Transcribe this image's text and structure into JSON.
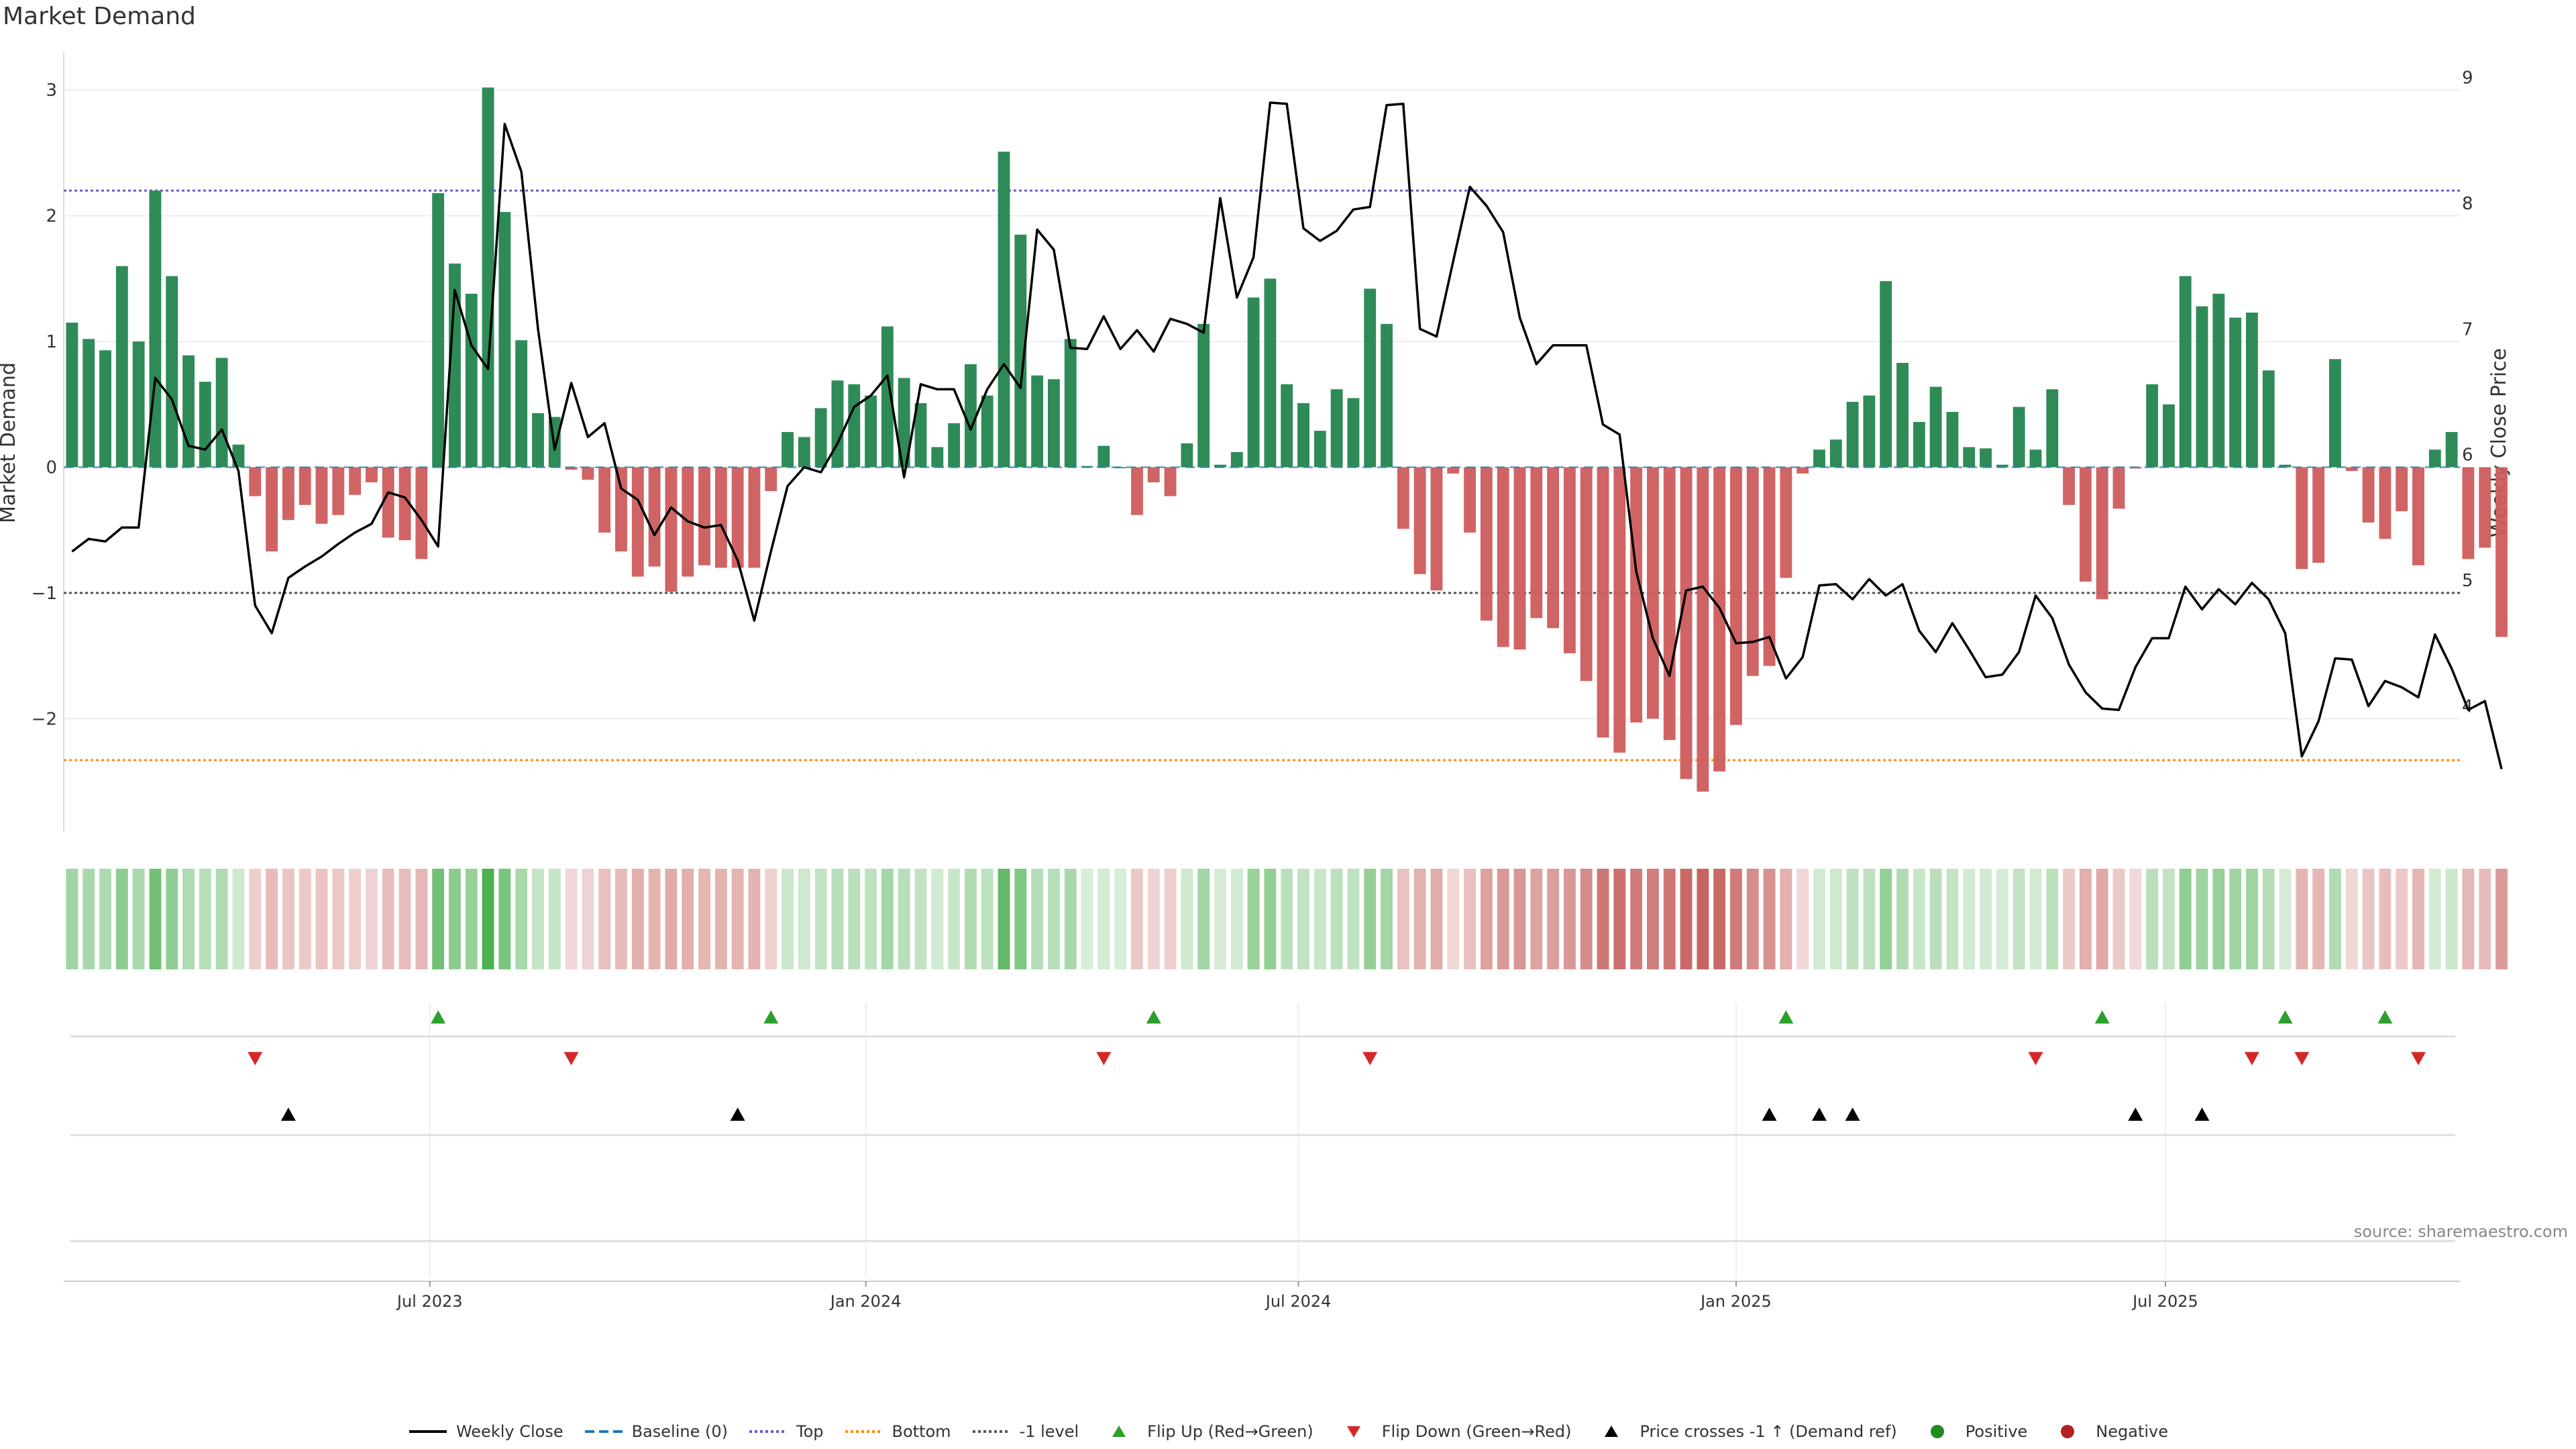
{
  "title": "Market Demand",
  "source": "source: sharemaestro.com",
  "colors": {
    "positive": "#2e8b57",
    "negative": "#cd5c5c",
    "price": "#000000",
    "top": "#6a5acd",
    "bottom": "#ff8c00",
    "minus1": "#555555",
    "baseline": "#1f77b4",
    "flip_up": "#2ca02c",
    "flip_down": "#d62728",
    "cross": "#000000"
  },
  "legend": [
    {
      "key": "weekly_close",
      "label": "Weekly Close"
    },
    {
      "key": "baseline",
      "label": "Baseline (0)"
    },
    {
      "key": "top",
      "label": "Top"
    },
    {
      "key": "bottom",
      "label": "Bottom"
    },
    {
      "key": "minus1",
      "label": "-1 level"
    },
    {
      "key": "flip_up",
      "label": "Flip Up (Red→Green)"
    },
    {
      "key": "flip_down",
      "label": "Flip Down (Green→Red)"
    },
    {
      "key": "cross",
      "label": "Price crosses -1 ↑ (Demand ref)"
    },
    {
      "key": "positive",
      "label": "Positive"
    },
    {
      "key": "negative",
      "label": "Negative"
    }
  ],
  "chart_data": {
    "type": "bar",
    "title": "Market Demand",
    "ylabel": "Market Demand",
    "y2label": "Weekly Close Price",
    "ylim": [
      -2.9,
      3.3
    ],
    "y2lim": [
      3.0,
      9.2
    ],
    "yticks": [
      3,
      2,
      1,
      0,
      -1,
      -2
    ],
    "ytick_labels": [
      "3",
      "2",
      "1",
      "0",
      "−1",
      "−2"
    ],
    "y2ticks": [
      9,
      8,
      7,
      6,
      5,
      4
    ],
    "ref_lines": {
      "top": 2.2,
      "bottom": -2.33,
      "minus1": -1.0,
      "baseline": 0
    },
    "xlim_index": [
      -0.5,
      143.5
    ],
    "xticks": [
      {
        "index": 21.5,
        "label": "Jul 2023"
      },
      {
        "index": 47.7,
        "label": "Jan 2024"
      },
      {
        "index": 73.7,
        "label": "Jul 2024"
      },
      {
        "index": 100.0,
        "label": "Jan 2025"
      },
      {
        "index": 125.8,
        "label": "Jul 2025"
      }
    ],
    "demand": [
      1.15,
      1.02,
      0.93,
      1.6,
      1.0,
      2.2,
      1.52,
      0.89,
      0.68,
      0.87,
      0.18,
      -0.23,
      -0.67,
      -0.42,
      -0.3,
      -0.45,
      -0.38,
      -0.22,
      -0.12,
      -0.56,
      -0.58,
      -0.73,
      2.18,
      1.62,
      1.38,
      3.02,
      2.03,
      1.01,
      0.43,
      0.4,
      -0.02,
      -0.1,
      -0.52,
      -0.67,
      -0.87,
      -0.79,
      -0.99,
      -0.87,
      -0.78,
      -0.8,
      -0.8,
      -0.8,
      -0.19,
      0.28,
      0.24,
      0.47,
      0.69,
      0.66,
      0.57,
      1.12,
      0.71,
      0.51,
      0.16,
      0.35,
      0.82,
      0.57,
      2.51,
      1.85,
      0.73,
      0.7,
      1.02,
      0.01,
      0.17,
      0.0,
      -0.38,
      -0.12,
      -0.23,
      0.19,
      1.14,
      0.02,
      0.12,
      1.35,
      1.5,
      0.66,
      0.51,
      0.29,
      0.62,
      0.55,
      1.42,
      1.14,
      -0.49,
      -0.85,
      -0.98,
      -0.05,
      -0.52,
      -1.22,
      -1.43,
      -1.45,
      -1.2,
      -1.28,
      -1.48,
      -1.7,
      -2.15,
      -2.27,
      -2.03,
      -2.0,
      -2.17,
      -2.48,
      -2.58,
      -2.42,
      -2.05,
      -1.66,
      -1.58,
      -0.88,
      -0.05,
      0.14,
      0.22,
      0.52,
      0.57,
      1.48,
      0.83,
      0.36,
      0.64,
      0.44,
      0.16,
      0.15,
      0.02,
      0.48,
      0.14,
      0.62,
      -0.3,
      -0.91,
      -1.05,
      -0.33,
      -0.01,
      0.66,
      0.5,
      1.52,
      1.28,
      1.38,
      1.19,
      1.23,
      0.77,
      0.02,
      -0.81,
      -0.76,
      0.86,
      -0.03,
      -0.44,
      -0.57,
      -0.35,
      -0.78,
      0.14,
      0.28,
      -0.73,
      -0.64,
      -1.35
    ],
    "close": [
      5.23,
      5.33,
      5.31,
      5.42,
      5.42,
      6.61,
      6.44,
      6.07,
      6.04,
      6.2,
      5.87,
      4.8,
      4.58,
      5.02,
      5.11,
      5.19,
      5.29,
      5.38,
      5.45,
      5.7,
      5.66,
      5.48,
      5.27,
      7.31,
      6.87,
      6.68,
      8.63,
      8.25,
      7.0,
      6.04,
      6.57,
      6.14,
      6.25,
      5.73,
      5.64,
      5.36,
      5.58,
      5.47,
      5.42,
      5.44,
      5.16,
      4.68,
      5.23,
      5.75,
      5.9,
      5.86,
      6.09,
      6.38,
      6.47,
      6.63,
      5.82,
      6.56,
      6.52,
      6.52,
      6.2,
      6.52,
      6.72,
      6.53,
      7.79,
      7.63,
      6.85,
      6.84,
      7.1,
      6.84,
      6.99,
      6.82,
      7.08,
      7.04,
      6.97,
      8.04,
      7.25,
      7.57,
      8.8,
      8.79,
      7.8,
      7.7,
      7.78,
      7.95,
      7.97,
      8.78,
      8.79,
      7.0,
      6.94,
      7.54,
      8.13,
      7.98,
      7.77,
      7.09,
      6.72,
      6.87,
      6.87,
      6.87,
      6.24,
      6.16,
      5.07,
      4.54,
      4.24,
      4.92,
      4.95,
      4.78,
      4.5,
      4.51,
      4.55,
      4.22,
      4.39,
      4.96,
      4.97,
      4.85,
      5.01,
      4.88,
      4.97,
      4.6,
      4.43,
      4.66,
      4.45,
      4.23,
      4.25,
      4.43,
      4.88,
      4.7,
      4.33,
      4.11,
      3.98,
      3.97,
      4.31,
      4.54,
      4.54,
      4.95,
      4.77,
      4.93,
      4.81,
      4.98,
      4.85,
      4.58,
      3.6,
      3.88,
      4.38,
      4.37,
      4.0,
      4.2,
      4.15,
      4.07,
      4.57,
      4.3,
      3.97,
      4.04,
      3.5
    ],
    "flip_up": [
      22,
      42,
      65,
      103,
      122,
      133,
      139
    ],
    "flip_down": [
      11,
      30,
      62,
      78,
      118,
      131,
      134,
      141
    ],
    "price_cross_up": [
      13,
      40,
      102,
      105,
      107,
      124,
      128
    ]
  }
}
